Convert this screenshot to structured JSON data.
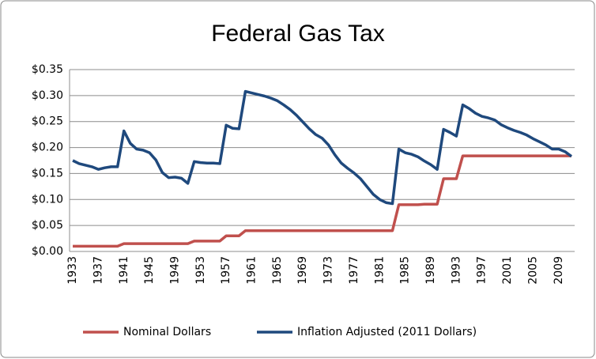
{
  "chart_data": {
    "type": "line",
    "title": "Federal Gas Tax",
    "categories": [
      "1933",
      null,
      null,
      null,
      "1937",
      null,
      null,
      null,
      "1941",
      null,
      null,
      null,
      "1945",
      null,
      null,
      null,
      "1949",
      null,
      null,
      null,
      "1953",
      null,
      null,
      null,
      "1957",
      null,
      null,
      null,
      "1961",
      null,
      null,
      null,
      "1965",
      null,
      null,
      null,
      "1969",
      null,
      null,
      null,
      "1973",
      null,
      null,
      null,
      "1977",
      null,
      null,
      null,
      "1981",
      null,
      null,
      null,
      "1985",
      null,
      null,
      null,
      "1989",
      null,
      null,
      null,
      "1993",
      null,
      null,
      null,
      "1997",
      null,
      null,
      null,
      "2001",
      null,
      null,
      null,
      "2005",
      null,
      null,
      null,
      "2009",
      null,
      null
    ],
    "series": [
      {
        "name": "Nominal Dollars",
        "color": "#c0504d",
        "values": [
          0.01,
          0.01,
          0.01,
          0.01,
          0.01,
          0.01,
          0.01,
          0.01,
          0.015,
          0.015,
          0.015,
          0.015,
          0.015,
          0.015,
          0.015,
          0.015,
          0.015,
          0.015,
          0.015,
          0.02,
          0.02,
          0.02,
          0.02,
          0.02,
          0.03,
          0.03,
          0.03,
          0.04,
          0.04,
          0.04,
          0.04,
          0.04,
          0.04,
          0.04,
          0.04,
          0.04,
          0.04,
          0.04,
          0.04,
          0.04,
          0.04,
          0.04,
          0.04,
          0.04,
          0.04,
          0.04,
          0.04,
          0.04,
          0.04,
          0.04,
          0.04,
          0.09,
          0.09,
          0.09,
          0.09,
          0.091,
          0.091,
          0.091,
          0.14,
          0.14,
          0.14,
          0.184,
          0.184,
          0.184,
          0.184,
          0.184,
          0.184,
          0.184,
          0.184,
          0.184,
          0.184,
          0.184,
          0.184,
          0.184,
          0.184,
          0.184,
          0.184,
          0.184,
          0.184
        ]
      },
      {
        "name": "Inflation Adjusted (2011 Dollars)",
        "color": "#1f497d",
        "values": [
          0.175,
          0.169,
          0.166,
          0.163,
          0.158,
          0.161,
          0.163,
          0.163,
          0.232,
          0.208,
          0.197,
          0.195,
          0.19,
          0.176,
          0.152,
          0.142,
          0.143,
          0.141,
          0.131,
          0.173,
          0.171,
          0.17,
          0.17,
          0.169,
          0.243,
          0.237,
          0.236,
          0.308,
          0.305,
          0.302,
          0.299,
          0.295,
          0.29,
          0.282,
          0.273,
          0.262,
          0.249,
          0.236,
          0.225,
          0.218,
          0.205,
          0.186,
          0.17,
          0.16,
          0.151,
          0.14,
          0.125,
          0.11,
          0.1,
          0.094,
          0.092,
          0.197,
          0.19,
          0.187,
          0.182,
          0.174,
          0.167,
          0.158,
          0.235,
          0.229,
          0.222,
          0.282,
          0.275,
          0.266,
          0.26,
          0.257,
          0.253,
          0.244,
          0.238,
          0.233,
          0.229,
          0.224,
          0.217,
          0.211,
          0.205,
          0.197,
          0.197,
          0.192,
          0.183
        ]
      }
    ],
    "ylim": [
      0,
      0.35
    ],
    "yticks": [
      {
        "value": 0,
        "label": "$0.00"
      },
      {
        "value": 0.05,
        "label": "$0.05"
      },
      {
        "value": 0.1,
        "label": "$0.10"
      },
      {
        "value": 0.15,
        "label": "$0.15"
      },
      {
        "value": 0.2,
        "label": "$0.20"
      },
      {
        "value": 0.25,
        "label": "$0.25"
      },
      {
        "value": 0.3,
        "label": "$0.30"
      },
      {
        "value": 0.35,
        "label": "$0.35"
      }
    ],
    "grid": true,
    "legend": "bottom"
  }
}
